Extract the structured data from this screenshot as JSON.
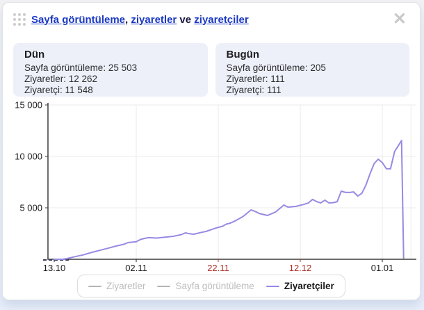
{
  "header": {
    "title_links": [
      {
        "label": "Sayfa görüntüleme"
      },
      {
        "label": "ziyaretler"
      },
      {
        "label": "ziyaretçiler"
      }
    ],
    "separators": [
      ", ",
      " ve "
    ]
  },
  "icons": {
    "close": "✕",
    "drag_handle": "grid-of-dots"
  },
  "summary_cards": [
    {
      "title": "Dün",
      "rows": [
        "Sayfa görüntüleme: 25 503",
        "Ziyaretler: 12 262",
        "Ziyaretçi: 11 548"
      ]
    },
    {
      "title": "Bugün",
      "rows": [
        "Sayfa görüntüleme: 205",
        "Ziyaretler: 111",
        "Ziyaretçi: 111"
      ]
    }
  ],
  "chart_data": {
    "type": "line",
    "title": "",
    "xlabel": "",
    "ylabel": "",
    "ylim": [
      0,
      15000
    ],
    "grid": true,
    "legend_position": "bottom",
    "axis_color": "#3d3d3d",
    "grid_color": "#ebebeb",
    "y_ticks": [
      {
        "value": 5000,
        "label": "5 000"
      },
      {
        "value": 10000,
        "label": "10 000"
      },
      {
        "value": 15000,
        "label": "15 000"
      }
    ],
    "x_ticks": [
      {
        "day": 0,
        "label": "13.10",
        "color": "#1c1c1c"
      },
      {
        "day": 20,
        "label": "02.11",
        "color": "#1c1c1c"
      },
      {
        "day": 40,
        "label": "22.11",
        "color": "#ae2e24"
      },
      {
        "day": 60,
        "label": "12.12",
        "color": "#ae2e24"
      },
      {
        "day": 80,
        "label": "01.01",
        "color": "#1c1c1c"
      }
    ],
    "extra_gridline_days": [
      87
    ],
    "dashed_start": {
      "from_day": -2.7,
      "to_day": 3.8,
      "value": 0,
      "color": "#3a3a5c"
    },
    "series": [
      {
        "name": "Ziyaretler",
        "key": "ziyaretler",
        "visible": false,
        "color": "#b5b5b5"
      },
      {
        "name": "Sayfa görüntüleme",
        "key": "sayfa-goruntuleme",
        "visible": false,
        "color": "#b5b5b5"
      },
      {
        "name": "Ziyaretçiler",
        "key": "ziyaretciler",
        "visible": true,
        "color": "#968ae3",
        "points": [
          [
            0,
            0
          ],
          [
            2,
            0
          ],
          [
            3,
            60
          ],
          [
            5,
            250
          ],
          [
            7,
            420
          ],
          [
            9,
            650
          ],
          [
            11,
            860
          ],
          [
            13,
            1060
          ],
          [
            15,
            1280
          ],
          [
            17,
            1460
          ],
          [
            18,
            1620
          ],
          [
            20,
            1700
          ],
          [
            21,
            1920
          ],
          [
            22,
            2030
          ],
          [
            23,
            2100
          ],
          [
            25,
            2060
          ],
          [
            27,
            2150
          ],
          [
            29,
            2230
          ],
          [
            31,
            2400
          ],
          [
            32,
            2570
          ],
          [
            33,
            2480
          ],
          [
            34,
            2430
          ],
          [
            36,
            2620
          ],
          [
            37,
            2700
          ],
          [
            39,
            2980
          ],
          [
            40,
            3100
          ],
          [
            41,
            3200
          ],
          [
            42,
            3420
          ],
          [
            43,
            3520
          ],
          [
            44,
            3700
          ],
          [
            46,
            4150
          ],
          [
            48,
            4800
          ],
          [
            49,
            4650
          ],
          [
            50,
            4450
          ],
          [
            52,
            4260
          ],
          [
            54,
            4600
          ],
          [
            56,
            5270
          ],
          [
            57,
            5070
          ],
          [
            59,
            5140
          ],
          [
            61,
            5350
          ],
          [
            62,
            5480
          ],
          [
            63,
            5815
          ],
          [
            64,
            5600
          ],
          [
            65,
            5480
          ],
          [
            66,
            5745
          ],
          [
            67,
            5480
          ],
          [
            68,
            5500
          ],
          [
            69,
            5600
          ],
          [
            70,
            6620
          ],
          [
            71,
            6500
          ],
          [
            72,
            6490
          ],
          [
            73,
            6550
          ],
          [
            74,
            6150
          ],
          [
            75,
            6400
          ],
          [
            76,
            7200
          ],
          [
            77,
            8300
          ],
          [
            78,
            9300
          ],
          [
            79,
            9730
          ],
          [
            80,
            9400
          ],
          [
            81,
            8800
          ],
          [
            82,
            8790
          ],
          [
            83,
            10470
          ],
          [
            84,
            11100
          ],
          [
            84.7,
            11548
          ],
          [
            85.2,
            111
          ]
        ]
      }
    ]
  },
  "colors": {
    "link_blue": "#1a38c2",
    "red_date": "#ae2e24",
    "accent_line": "#968ae3",
    "card_bg": "#edf0f9",
    "muted_gray": "#b9b9b9"
  }
}
